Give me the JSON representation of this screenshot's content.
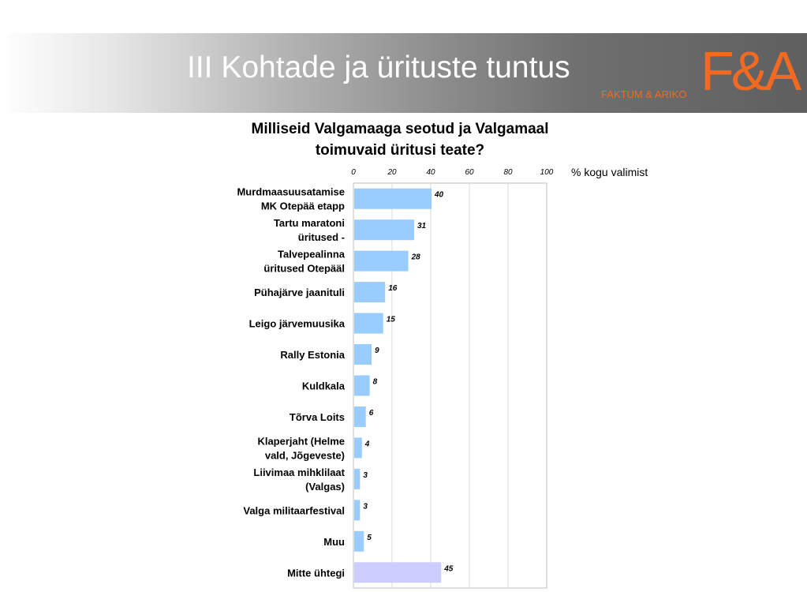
{
  "header": {
    "title": "III Kohtade ja ürituste tuntus",
    "logo_mark": "F&A",
    "logo_text": "FAKTUM & ARIKO"
  },
  "colors": {
    "accent": "#f26a21",
    "bar": "#99ccff",
    "bar_highlight": "#ccccff"
  },
  "chart_data": {
    "type": "bar",
    "orientation": "horizontal",
    "title": "Milliseid Valgamaaga seotud ja Valgamaal toimuvaid üritusi teate?",
    "xlabel": "% kogu valimist",
    "xlim": [
      0,
      100
    ],
    "xticks": [
      "0",
      "20",
      "40",
      "60",
      "80",
      "100"
    ],
    "grid": true,
    "categories": [
      [
        "Murdmaasuusatamise",
        "MK Otepää etapp"
      ],
      [
        "Tartu maratoni",
        "üritused -"
      ],
      [
        "Talvepealinna",
        "üritused Otepääl"
      ],
      [
        "Pühajärve jaanituli"
      ],
      [
        "Leigo järvemuusika"
      ],
      [
        "Rally Estonia"
      ],
      [
        "Kuldkala"
      ],
      [
        "Tõrva Loits"
      ],
      [
        "Klaperjaht  (Helme",
        "vald, Jõgeveste)"
      ],
      [
        "Liivimaa mihklilaat",
        "(Valgas)"
      ],
      [
        "Valga militaarfestival"
      ],
      [
        "Muu"
      ],
      [
        "Mitte ühtegi"
      ]
    ],
    "values": [
      40,
      31,
      28,
      16,
      15,
      9,
      8,
      6,
      4,
      3,
      3,
      5,
      45
    ],
    "highlight_last": true
  }
}
